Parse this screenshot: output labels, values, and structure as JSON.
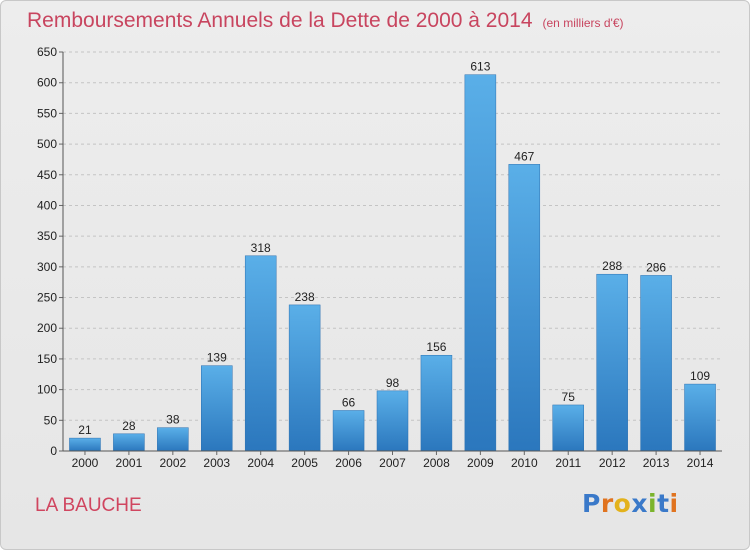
{
  "chart_data": {
    "type": "bar",
    "title": "Remboursements Annuels de la Dette de 2000 à 2014",
    "unit_note": "(en milliers d'€)",
    "categories": [
      "2000",
      "2001",
      "2002",
      "2003",
      "2004",
      "2005",
      "2006",
      "2007",
      "2008",
      "2009",
      "2010",
      "2011",
      "2012",
      "2013",
      "2014"
    ],
    "values": [
      21,
      28,
      38,
      139,
      318,
      238,
      66,
      98,
      156,
      613,
      467,
      75,
      288,
      286,
      109
    ],
    "y_ticks": [
      0,
      50,
      100,
      150,
      200,
      250,
      300,
      350,
      400,
      450,
      500,
      550,
      600,
      650
    ],
    "ylim": [
      0,
      650
    ],
    "grid": true,
    "data_labels": true,
    "bar_color": "#3a8fd6"
  },
  "town": "LA BAUCHE",
  "brand": {
    "letters": [
      "P",
      "r",
      "o",
      "x",
      "i",
      "t",
      "i"
    ],
    "colors": [
      "#3a79c9",
      "#e0731f",
      "#e3b21c",
      "#3a79c9",
      "#7bb42c",
      "#3a79c9",
      "#e0731f"
    ]
  },
  "colors": {
    "title": "#c8455f",
    "grid": "#c4c4c4"
  }
}
